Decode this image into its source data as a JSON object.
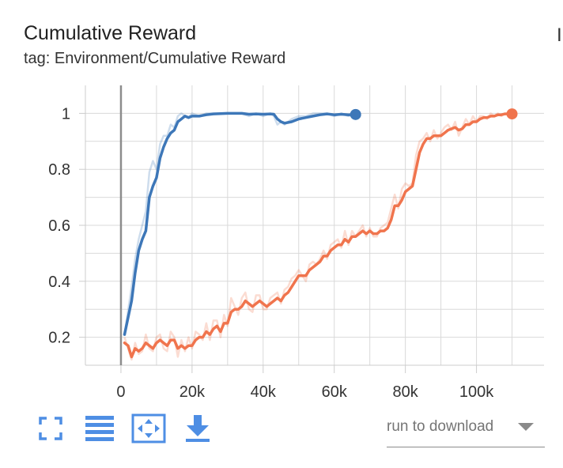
{
  "card": {
    "title": "Cumulative Reward",
    "tag": "tag: Environment/Cumulative Reward",
    "edge_char": "I"
  },
  "chart_data": {
    "type": "line",
    "title": "Cumulative Reward",
    "xlabel": "",
    "ylabel": "",
    "x_ticks": [
      {
        "value": 0,
        "label": "0"
      },
      {
        "value": 20000,
        "label": "20k"
      },
      {
        "value": 40000,
        "label": "40k"
      },
      {
        "value": 60000,
        "label": "60k"
      },
      {
        "value": 80000,
        "label": "80k"
      },
      {
        "value": 100000,
        "label": "100k"
      }
    ],
    "y_ticks": [
      {
        "value": 0.2,
        "label": "0.2"
      },
      {
        "value": 0.4,
        "label": "0.4"
      },
      {
        "value": 0.6,
        "label": "0.6"
      },
      {
        "value": 0.8,
        "label": "0.8"
      },
      {
        "value": 1,
        "label": "1"
      }
    ],
    "xlim": [
      -10000,
      119000
    ],
    "ylim": [
      0.1,
      1.1
    ],
    "grid": true,
    "series": [
      {
        "color": "#3d77b8",
        "x": [
          1000,
          3000,
          4000,
          5000,
          6000,
          7000,
          8000,
          9000,
          10000,
          11000,
          12000,
          13000,
          14000,
          15000,
          16000,
          17000,
          18000,
          19000,
          20000,
          22000,
          24000,
          26000,
          28000,
          30000,
          32000,
          34000,
          36000,
          38000,
          40000,
          42000,
          43000,
          44000,
          45000,
          46000,
          48000,
          50000,
          52000,
          54000,
          56000,
          58000,
          60000,
          62000,
          64000,
          66000
        ],
        "y": [
          0.21,
          0.33,
          0.43,
          0.51,
          0.55,
          0.58,
          0.7,
          0.74,
          0.77,
          0.84,
          0.88,
          0.91,
          0.93,
          0.94,
          0.97,
          0.98,
          0.99,
          0.985,
          0.99,
          0.99,
          0.995,
          0.998,
          0.999,
          1.0,
          1.0,
          1.0,
          0.997,
          0.998,
          0.997,
          0.998,
          0.997,
          0.98,
          0.97,
          0.965,
          0.97,
          0.98,
          0.985,
          0.99,
          0.995,
          0.998,
          0.995,
          0.997,
          0.995,
          0.996
        ],
        "raw_y": [
          0.21,
          0.38,
          0.48,
          0.55,
          0.6,
          0.65,
          0.79,
          0.83,
          0.8,
          0.89,
          0.92,
          0.92,
          0.96,
          0.95,
          0.99,
          1.0,
          0.99,
          0.985,
          1.0,
          0.99,
          1.0,
          1.0,
          1.0,
          1.0,
          1.0,
          1.0,
          0.99,
          1.0,
          0.99,
          1.0,
          0.99,
          0.96,
          0.97,
          0.96,
          0.98,
          0.99,
          0.99,
          1.0,
          1.0,
          1.0,
          0.99,
          1.0,
          0.99,
          1.0
        ]
      },
      {
        "color": "#f0744d",
        "x": [
          1000,
          2000,
          3000,
          4000,
          5000,
          6000,
          7000,
          8000,
          9000,
          10000,
          11000,
          12000,
          13000,
          14000,
          15000,
          16000,
          17000,
          18000,
          19000,
          20000,
          21000,
          22000,
          23000,
          24000,
          25000,
          26000,
          27000,
          28000,
          29000,
          30000,
          31000,
          32000,
          33000,
          34000,
          35000,
          36000,
          37000,
          38000,
          39000,
          40000,
          41000,
          42000,
          43000,
          44000,
          45000,
          46000,
          47000,
          48000,
          49000,
          50000,
          51000,
          52000,
          53000,
          54000,
          55000,
          56000,
          57000,
          58000,
          59000,
          60000,
          61000,
          62000,
          63000,
          64000,
          65000,
          66000,
          67000,
          68000,
          69000,
          70000,
          71000,
          72000,
          73000,
          74000,
          75000,
          76000,
          77000,
          78000,
          79000,
          80000,
          81000,
          82000,
          83000,
          84000,
          85000,
          86000,
          87000,
          88000,
          89000,
          90000,
          91000,
          92000,
          93000,
          94000,
          95000,
          96000,
          97000,
          98000,
          99000,
          100000,
          101000,
          102000,
          103000,
          104000,
          105000,
          106000,
          107000,
          108000,
          109000,
          110000
        ],
        "y": [
          0.18,
          0.17,
          0.13,
          0.16,
          0.15,
          0.16,
          0.18,
          0.17,
          0.16,
          0.18,
          0.19,
          0.18,
          0.17,
          0.19,
          0.19,
          0.16,
          0.17,
          0.16,
          0.17,
          0.17,
          0.19,
          0.2,
          0.2,
          0.22,
          0.21,
          0.23,
          0.24,
          0.22,
          0.25,
          0.25,
          0.29,
          0.3,
          0.3,
          0.31,
          0.33,
          0.32,
          0.31,
          0.32,
          0.33,
          0.32,
          0.31,
          0.32,
          0.33,
          0.34,
          0.33,
          0.35,
          0.36,
          0.38,
          0.4,
          0.42,
          0.42,
          0.42,
          0.44,
          0.45,
          0.46,
          0.47,
          0.49,
          0.49,
          0.51,
          0.52,
          0.53,
          0.53,
          0.55,
          0.54,
          0.56,
          0.56,
          0.57,
          0.58,
          0.57,
          0.58,
          0.57,
          0.57,
          0.58,
          0.58,
          0.59,
          0.62,
          0.67,
          0.67,
          0.69,
          0.72,
          0.73,
          0.74,
          0.8,
          0.86,
          0.89,
          0.91,
          0.91,
          0.92,
          0.92,
          0.92,
          0.93,
          0.94,
          0.945,
          0.95,
          0.94,
          0.945,
          0.96,
          0.96,
          0.97,
          0.97,
          0.98,
          0.985,
          0.985,
          0.99,
          0.99,
          0.995,
          0.995,
          0.998,
          0.998,
          0.998
        ],
        "raw_y": [
          0.2,
          0.16,
          0.12,
          0.18,
          0.14,
          0.15,
          0.21,
          0.16,
          0.15,
          0.2,
          0.21,
          0.16,
          0.15,
          0.22,
          0.2,
          0.13,
          0.19,
          0.15,
          0.2,
          0.16,
          0.22,
          0.21,
          0.19,
          0.25,
          0.19,
          0.26,
          0.26,
          0.2,
          0.28,
          0.24,
          0.34,
          0.31,
          0.28,
          0.34,
          0.36,
          0.3,
          0.29,
          0.35,
          0.35,
          0.3,
          0.3,
          0.34,
          0.35,
          0.36,
          0.32,
          0.37,
          0.38,
          0.41,
          0.42,
          0.44,
          0.42,
          0.4,
          0.46,
          0.47,
          0.46,
          0.48,
          0.51,
          0.48,
          0.53,
          0.54,
          0.55,
          0.52,
          0.58,
          0.53,
          0.58,
          0.56,
          0.58,
          0.6,
          0.56,
          0.59,
          0.56,
          0.56,
          0.59,
          0.6,
          0.61,
          0.66,
          0.71,
          0.66,
          0.73,
          0.75,
          0.74,
          0.75,
          0.85,
          0.9,
          0.91,
          0.93,
          0.9,
          0.94,
          0.91,
          0.93,
          0.95,
          0.96,
          0.94,
          0.97,
          0.92,
          0.95,
          0.98,
          0.96,
          0.99,
          0.97,
          0.99,
          0.99,
          0.98,
          1.0,
          0.99,
          1.0,
          0.99,
          1.0,
          1.0,
          1.0
        ]
      }
    ]
  },
  "toolbar": {
    "buttons": [
      {
        "name": "fullscreen-icon",
        "title": "Toggle expanded view"
      },
      {
        "name": "data-table-icon",
        "title": "Toggle data table"
      },
      {
        "name": "fit-domain-icon",
        "title": "Fit domain to data"
      },
      {
        "name": "download-icon",
        "title": "Download"
      }
    ],
    "accent": "#4e8ee4"
  },
  "download_select": {
    "placeholder": "run to download"
  }
}
